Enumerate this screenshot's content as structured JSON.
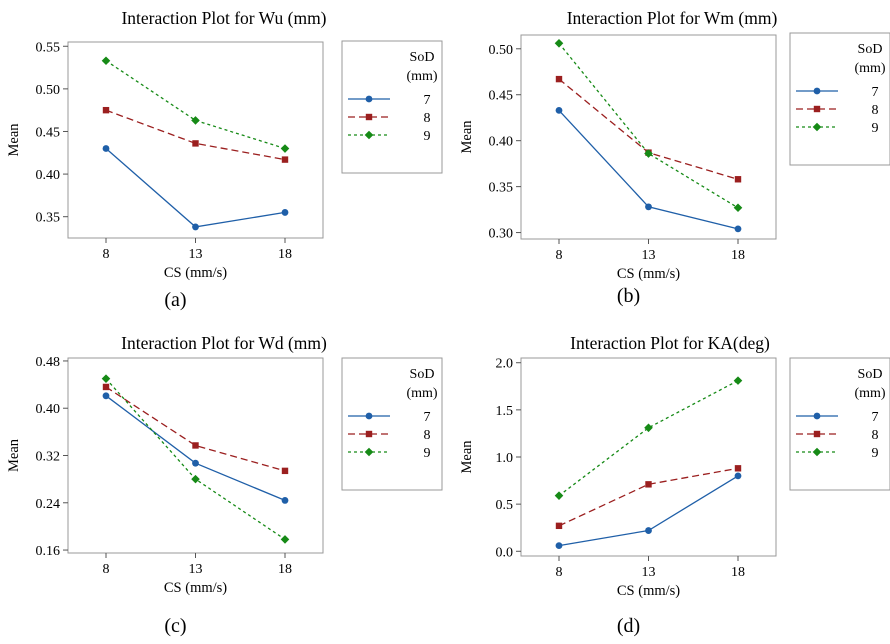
{
  "chart_data": [
    {
      "type": "line",
      "panel_label": "(a)",
      "title": "Interaction Plot for Wu (mm)",
      "xlabel": "CS (mm/s)",
      "ylabel": "Mean",
      "x": [
        8,
        13,
        18
      ],
      "ylim": [
        0.325,
        0.555
      ],
      "yticks": [
        "0.35",
        "0.40",
        "0.45",
        "0.50",
        "0.55"
      ],
      "legend_title": [
        "SoD",
        "(mm)"
      ],
      "legend_position": "right",
      "grid": false,
      "series": [
        {
          "name": "7",
          "values": [
            0.43,
            0.338,
            0.355
          ],
          "color": "#1f5fa8",
          "marker": "circle",
          "dash": "solid"
        },
        {
          "name": "8",
          "values": [
            0.475,
            0.436,
            0.417
          ],
          "color": "#9b1f1f",
          "marker": "square",
          "dash": "dashed"
        },
        {
          "name": "9",
          "values": [
            0.533,
            0.463,
            0.43
          ],
          "color": "#168a16",
          "marker": "diamond",
          "dash": "dotted"
        }
      ]
    },
    {
      "type": "line",
      "panel_label": "(b)",
      "title": "Interaction Plot for Wm (mm)",
      "xlabel": "CS (mm/s)",
      "ylabel": "Mean",
      "x": [
        8,
        13,
        18
      ],
      "ylim": [
        0.293,
        0.515
      ],
      "yticks": [
        "0.30",
        "0.35",
        "0.40",
        "0.45",
        "0.50"
      ],
      "legend_title": [
        "SoD",
        "(mm)"
      ],
      "legend_position": "right",
      "grid": false,
      "series": [
        {
          "name": "7",
          "values": [
            0.433,
            0.328,
            0.304
          ],
          "color": "#1f5fa8",
          "marker": "circle",
          "dash": "solid"
        },
        {
          "name": "8",
          "values": [
            0.467,
            0.387,
            0.358
          ],
          "color": "#9b1f1f",
          "marker": "square",
          "dash": "dashed"
        },
        {
          "name": "9",
          "values": [
            0.506,
            0.386,
            0.327
          ],
          "color": "#168a16",
          "marker": "diamond",
          "dash": "dotted"
        }
      ]
    },
    {
      "type": "line",
      "panel_label": "(c)",
      "title": "Interaction Plot for Wd (mm)",
      "xlabel": "CS (mm/s)",
      "ylabel": "Mean",
      "x": [
        8,
        13,
        18
      ],
      "ylim": [
        0.155,
        0.485
      ],
      "yticks": [
        "0.16",
        "0.24",
        "0.32",
        "0.40",
        "0.48"
      ],
      "legend_title": [
        "SoD",
        "(mm)"
      ],
      "legend_position": "right",
      "grid": false,
      "series": [
        {
          "name": "7",
          "values": [
            0.421,
            0.307,
            0.244
          ],
          "color": "#1f5fa8",
          "marker": "circle",
          "dash": "solid"
        },
        {
          "name": "8",
          "values": [
            0.436,
            0.337,
            0.294
          ],
          "color": "#9b1f1f",
          "marker": "square",
          "dash": "dashed"
        },
        {
          "name": "9",
          "values": [
            0.45,
            0.28,
            0.178
          ],
          "color": "#168a16",
          "marker": "diamond",
          "dash": "dotted"
        }
      ]
    },
    {
      "type": "line",
      "panel_label": "(d)",
      "title": "Interaction Plot for KA(deg)",
      "xlabel": "CS (mm/s)",
      "ylabel": "Mean",
      "x": [
        8,
        13,
        18
      ],
      "ylim": [
        -0.05,
        2.05
      ],
      "yticks": [
        "0.0",
        "0.5",
        "1.0",
        "1.5",
        "2.0"
      ],
      "legend_title": [
        "SoD",
        "(mm)"
      ],
      "legend_position": "right",
      "grid": false,
      "series": [
        {
          "name": "7",
          "values": [
            0.06,
            0.22,
            0.8
          ],
          "color": "#1f5fa8",
          "marker": "circle",
          "dash": "solid"
        },
        {
          "name": "8",
          "values": [
            0.27,
            0.71,
            0.88
          ],
          "color": "#9b1f1f",
          "marker": "square",
          "dash": "dashed"
        },
        {
          "name": "9",
          "values": [
            0.59,
            1.31,
            1.81
          ],
          "color": "#168a16",
          "marker": "diamond",
          "dash": "dotted"
        }
      ]
    }
  ]
}
